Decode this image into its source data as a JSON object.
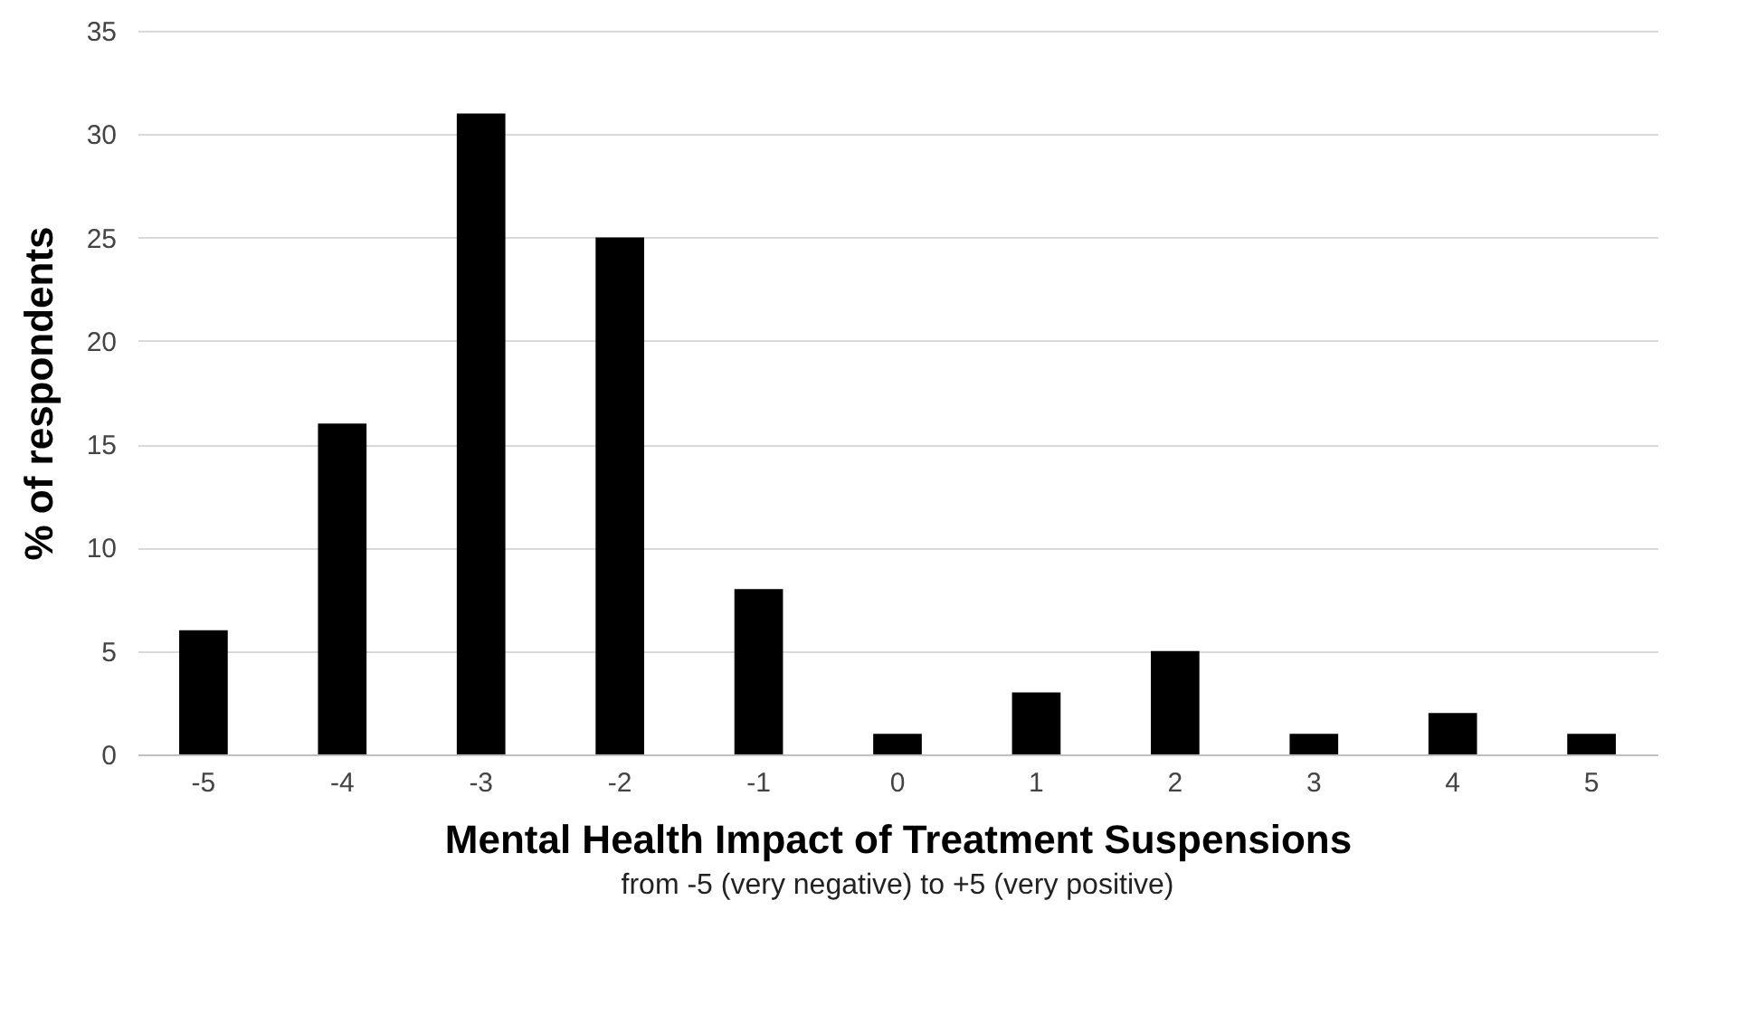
{
  "chart_data": {
    "type": "bar",
    "categories": [
      "-5",
      "-4",
      "-3",
      "-2",
      "-1",
      "0",
      "1",
      "2",
      "3",
      "4",
      "5"
    ],
    "values": [
      6,
      16,
      31,
      25,
      8,
      1,
      3,
      5,
      1,
      2,
      1
    ],
    "color": "#000000",
    "xlabel": "Mental Health Impact of Treatment Suspensions",
    "ylabel": "% of respondents",
    "annotations": [
      "from -5 (very negative) to +5 (very positive)"
    ],
    "ylim": [
      0,
      35
    ],
    "yticks": [
      0,
      5,
      10,
      15,
      20,
      25,
      30,
      35
    ],
    "grid": "y"
  }
}
